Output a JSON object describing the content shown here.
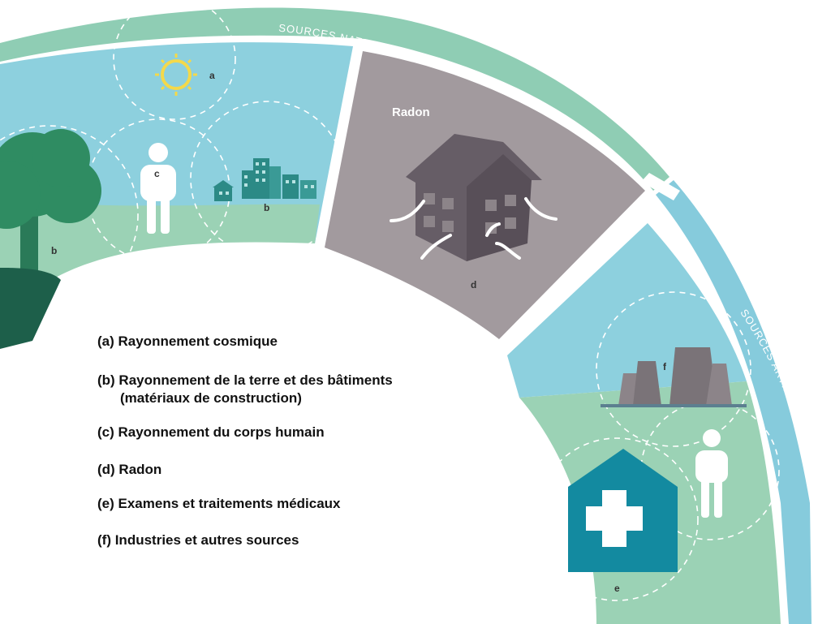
{
  "rings": {
    "natural_label": "SOURCES NATURELLES",
    "artificial_label": "SOURCES ARTIFICIELLES"
  },
  "segments": {
    "natural_markers": {
      "a": "a",
      "b_tree": "b",
      "b_city": "b",
      "c": "c"
    },
    "radon_title": "Radon",
    "radon_marker": "d",
    "artificial_markers": {
      "e": "e",
      "f": "f"
    }
  },
  "legend": {
    "items": [
      {
        "line1": "(a) Rayonnement cosmique"
      },
      {
        "line1": "(b) Rayonnement de la terre et des bâtiments",
        "line2": "(matériaux de construction)"
      },
      {
        "line1": "(c) Rayonnement du corps humain"
      },
      {
        "line1": "(d) Radon"
      },
      {
        "line1": "(e) Examens et traitements médicaux"
      },
      {
        "line1": "(f) Industries et autres sources"
      }
    ]
  },
  "colors": {
    "natural_ring": "#8fcdb4",
    "artificial_ring": "#86cbdc",
    "sky": "#8dd0de",
    "grass": "#9bd2b5",
    "radon_panel": "#a29a9e",
    "house": "#665d66",
    "tree": "#2f8c62",
    "tree_dark": "#1d5f4a",
    "medical": "#138aa0",
    "cooling_tower": "#7a7378",
    "building": "#2c8a86",
    "sun": "#f4d94a",
    "text": "#111111",
    "white": "#ffffff"
  }
}
